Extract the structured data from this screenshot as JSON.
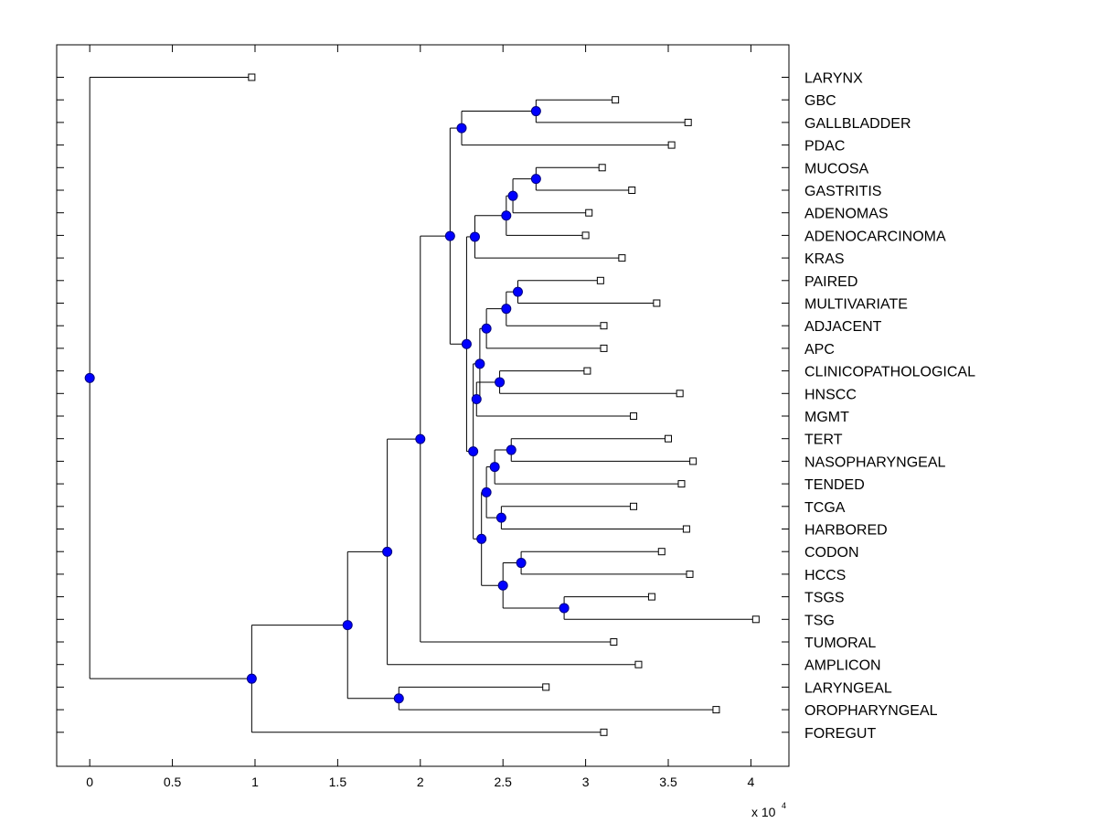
{
  "chart_data": {
    "type": "dendrogram",
    "orientation": "horizontal",
    "xlim": [
      -0.2,
      4.23
    ],
    "x_ticks": [
      0,
      0.5,
      1,
      1.5,
      2,
      2.5,
      3,
      3.5,
      4
    ],
    "x_tick_labels": [
      "0",
      "0.5",
      "1",
      "1.5",
      "2",
      "2.5",
      "3",
      "3.5",
      "4"
    ],
    "x_scale_label": "x 10",
    "x_scale_exponent": "4",
    "leaves": [
      {
        "name": "LARYNX",
        "x": 0.98
      },
      {
        "name": "GBC",
        "x": 3.18
      },
      {
        "name": "GALLBLADDER",
        "x": 3.62
      },
      {
        "name": "PDAC",
        "x": 3.52
      },
      {
        "name": "MUCOSA",
        "x": 3.1
      },
      {
        "name": "GASTRITIS",
        "x": 3.28
      },
      {
        "name": "ADENOMAS",
        "x": 3.02
      },
      {
        "name": "ADENOCARCINOMA",
        "x": 3.0
      },
      {
        "name": "KRAS",
        "x": 3.22
      },
      {
        "name": "PAIRED",
        "x": 3.09
      },
      {
        "name": "MULTIVARIATE",
        "x": 3.43
      },
      {
        "name": "ADJACENT",
        "x": 3.11
      },
      {
        "name": "APC",
        "x": 3.11
      },
      {
        "name": "CLINICOPATHOLOGICAL",
        "x": 3.01
      },
      {
        "name": "HNSCC",
        "x": 3.57
      },
      {
        "name": "MGMT",
        "x": 3.29
      },
      {
        "name": "TERT",
        "x": 3.5
      },
      {
        "name": "NASOPHARYNGEAL",
        "x": 3.65
      },
      {
        "name": "TENDED",
        "x": 3.58
      },
      {
        "name": "TCGA",
        "x": 3.29
      },
      {
        "name": "HARBORED",
        "x": 3.61
      },
      {
        "name": "CODON",
        "x": 3.46
      },
      {
        "name": "HCCS",
        "x": 3.63
      },
      {
        "name": "TSGS",
        "x": 3.4
      },
      {
        "name": "TSG",
        "x": 4.03
      },
      {
        "name": "TUMORAL",
        "x": 3.17
      },
      {
        "name": "AMPLICON",
        "x": 3.32
      },
      {
        "name": "LARYNGEAL",
        "x": 2.76
      },
      {
        "name": "OROPHARYNGEAL",
        "x": 3.79
      },
      {
        "name": "FOREGUT",
        "x": 3.11
      }
    ],
    "merges": [
      {
        "id": "m1",
        "x": 2.7,
        "children": [
          "GBC",
          "GALLBLADDER"
        ]
      },
      {
        "id": "m2",
        "x": 2.25,
        "children": [
          "m1",
          "PDAC"
        ]
      },
      {
        "id": "m3",
        "x": 2.7,
        "children": [
          "MUCOSA",
          "GASTRITIS"
        ]
      },
      {
        "id": "m4",
        "x": 2.56,
        "children": [
          "m3",
          "ADENOMAS"
        ]
      },
      {
        "id": "m5",
        "x": 2.52,
        "children": [
          "m4",
          "ADENOCARCINOMA"
        ]
      },
      {
        "id": "m6",
        "x": 2.33,
        "children": [
          "m5",
          "KRAS"
        ]
      },
      {
        "id": "m7",
        "x": 2.59,
        "children": [
          "PAIRED",
          "MULTIVARIATE"
        ]
      },
      {
        "id": "m8",
        "x": 2.52,
        "children": [
          "m7",
          "ADJACENT"
        ]
      },
      {
        "id": "m9",
        "x": 2.4,
        "children": [
          "m8",
          "APC"
        ]
      },
      {
        "id": "m10",
        "x": 2.48,
        "children": [
          "CLINICOPATHOLOGICAL",
          "HNSCC"
        ]
      },
      {
        "id": "m11",
        "x": 2.34,
        "children": [
          "m10",
          "MGMT"
        ]
      },
      {
        "id": "m12",
        "x": 2.36,
        "children": [
          "m9",
          "m11"
        ]
      },
      {
        "id": "m13",
        "x": 2.55,
        "children": [
          "TERT",
          "NASOPHARYNGEAL"
        ]
      },
      {
        "id": "m14",
        "x": 2.45,
        "children": [
          "m13",
          "TENDED"
        ]
      },
      {
        "id": "m15",
        "x": 2.49,
        "children": [
          "TCGA",
          "HARBORED"
        ]
      },
      {
        "id": "m16",
        "x": 2.4,
        "children": [
          "m14",
          "m15"
        ]
      },
      {
        "id": "m17",
        "x": 2.61,
        "children": [
          "CODON",
          "HCCS"
        ]
      },
      {
        "id": "m18",
        "x": 2.87,
        "children": [
          "TSGS",
          "TSG"
        ]
      },
      {
        "id": "m19",
        "x": 2.5,
        "children": [
          "m17",
          "m18"
        ]
      },
      {
        "id": "m20",
        "x": 2.37,
        "children": [
          "m16",
          "m19"
        ]
      },
      {
        "id": "m21",
        "x": 2.32,
        "children": [
          "m12",
          "m20"
        ]
      },
      {
        "id": "m22",
        "x": 2.28,
        "children": [
          "m6",
          "m21"
        ]
      },
      {
        "id": "m23",
        "x": 2.18,
        "children": [
          "m2",
          "m22"
        ]
      },
      {
        "id": "m24",
        "x": 2.0,
        "children": [
          "m23",
          "TUMORAL"
        ]
      },
      {
        "id": "m25",
        "x": 1.8,
        "children": [
          "m24",
          "AMPLICON"
        ]
      },
      {
        "id": "m26",
        "x": 1.87,
        "children": [
          "LARYNGEAL",
          "OROPHARYNGEAL"
        ]
      },
      {
        "id": "m27",
        "x": 1.56,
        "children": [
          "m25",
          "m26"
        ]
      },
      {
        "id": "m28",
        "x": 0.98,
        "children": [
          "m27",
          "FOREGUT"
        ]
      },
      {
        "id": "m29",
        "x": 0.0,
        "children": [
          "LARYNX",
          "m28"
        ]
      }
    ],
    "colors": {
      "axes": "#000000",
      "line": "#000000",
      "node_fill": "#0000ff",
      "node_stroke": "#000080",
      "leaf_fill": "#ffffff"
    }
  }
}
